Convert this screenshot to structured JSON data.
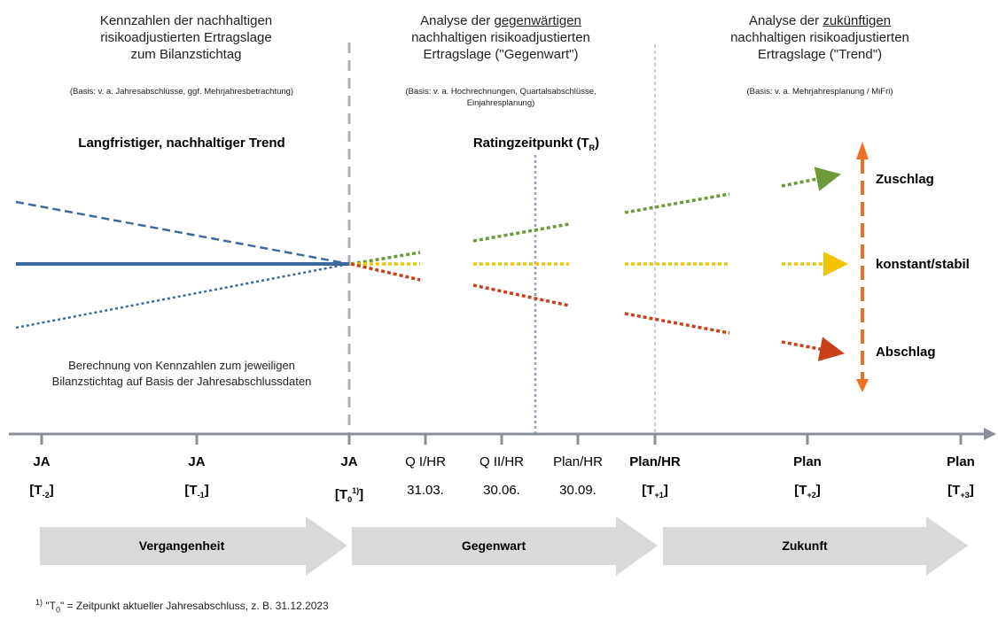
{
  "sections": [
    {
      "line1": "Kennzahlen der nachhaltigen",
      "line2": "risikoadjustierten Ertragslage",
      "line3": "zum Bilanzstichtag",
      "basis1": "(Basis: v. a. Jahresabschlüsse,  ggf. Mehrjahresbetrachtung)",
      "basis2": ""
    },
    {
      "line1_pre": "Analyse der ",
      "line1_u": "gegenwärtigen",
      "line2": "nachhaltigen risikoadjustierten",
      "line3": "Ertragslage (\"Gegenwart\")",
      "basis1": "(Basis: v. a. Hochrechnungen,  Quartalsabschlüsse,",
      "basis2": "Einjahresplanung)"
    },
    {
      "line1_pre": "Analyse der ",
      "line1_u": "zukünftigen",
      "line2": "nachhaltigen risikoadjustierten",
      "line3": "Ertragslage (\"Trend\")",
      "basis1": "(Basis: v. a. Mehrjahresplanung  / MiFri)",
      "basis2": ""
    }
  ],
  "trend_title": "Langfristiger, nachhaltiger Trend",
  "rating_title": "Ratingzeitpunkt (T",
  "rating_sub": "R",
  "rating_close": ")",
  "calc_note_1": "Berechnung von Kennzahlen zum jeweiligen",
  "calc_note_2": "Bilanzstichtag auf Basis der Jahresabschlussdaten",
  "labels": {
    "zuschlag": "Zuschlag",
    "konstant": "konstant/stabil",
    "abschlag": "Abschlag"
  },
  "ticks": [
    {
      "top": "JA",
      "bold": true,
      "br": "[T",
      "sub": "-2",
      "sup": "",
      "close": "]"
    },
    {
      "top": "JA",
      "bold": true,
      "br": "[T",
      "sub": "-1",
      "sup": "",
      "close": "]"
    },
    {
      "top": "JA",
      "bold": true,
      "br": "[T",
      "sub": "0",
      "sup": "1)",
      "close": "]"
    },
    {
      "top": "Q I/HR",
      "bold": false,
      "date": "31.03."
    },
    {
      "top": "Q II/HR",
      "bold": false,
      "date": "30.06."
    },
    {
      "top": "Plan/HR",
      "bold": false,
      "date": "30.09."
    },
    {
      "top": "Plan/HR",
      "bold": true,
      "br": "[T",
      "sub": "+1",
      "sup": "",
      "close": "]"
    },
    {
      "top": "Plan",
      "bold": true,
      "br": "[T",
      "sub": "+2",
      "sup": "",
      "close": "]"
    },
    {
      "top": "Plan",
      "bold": true,
      "br": "[T",
      "sub": "+3",
      "sup": "",
      "close": "]"
    }
  ],
  "phases": [
    "Vergangenheit",
    "Gegenwart",
    "Zukunft"
  ],
  "footnote_sup": "1)",
  "footnote_pre": " \"T",
  "footnote_sub": "0",
  "footnote_post": "\" = Zeitpunkt aktueller Jahresabschluss, z. B. 31.12.2023",
  "colors": {
    "blue": "#3d6a9e",
    "green": "#6a9a3a",
    "yellow": "#f5c400",
    "red": "#c8401a",
    "orange": "#f07020",
    "grey": "#8a8f9a",
    "phase": "#d9d9d9"
  }
}
